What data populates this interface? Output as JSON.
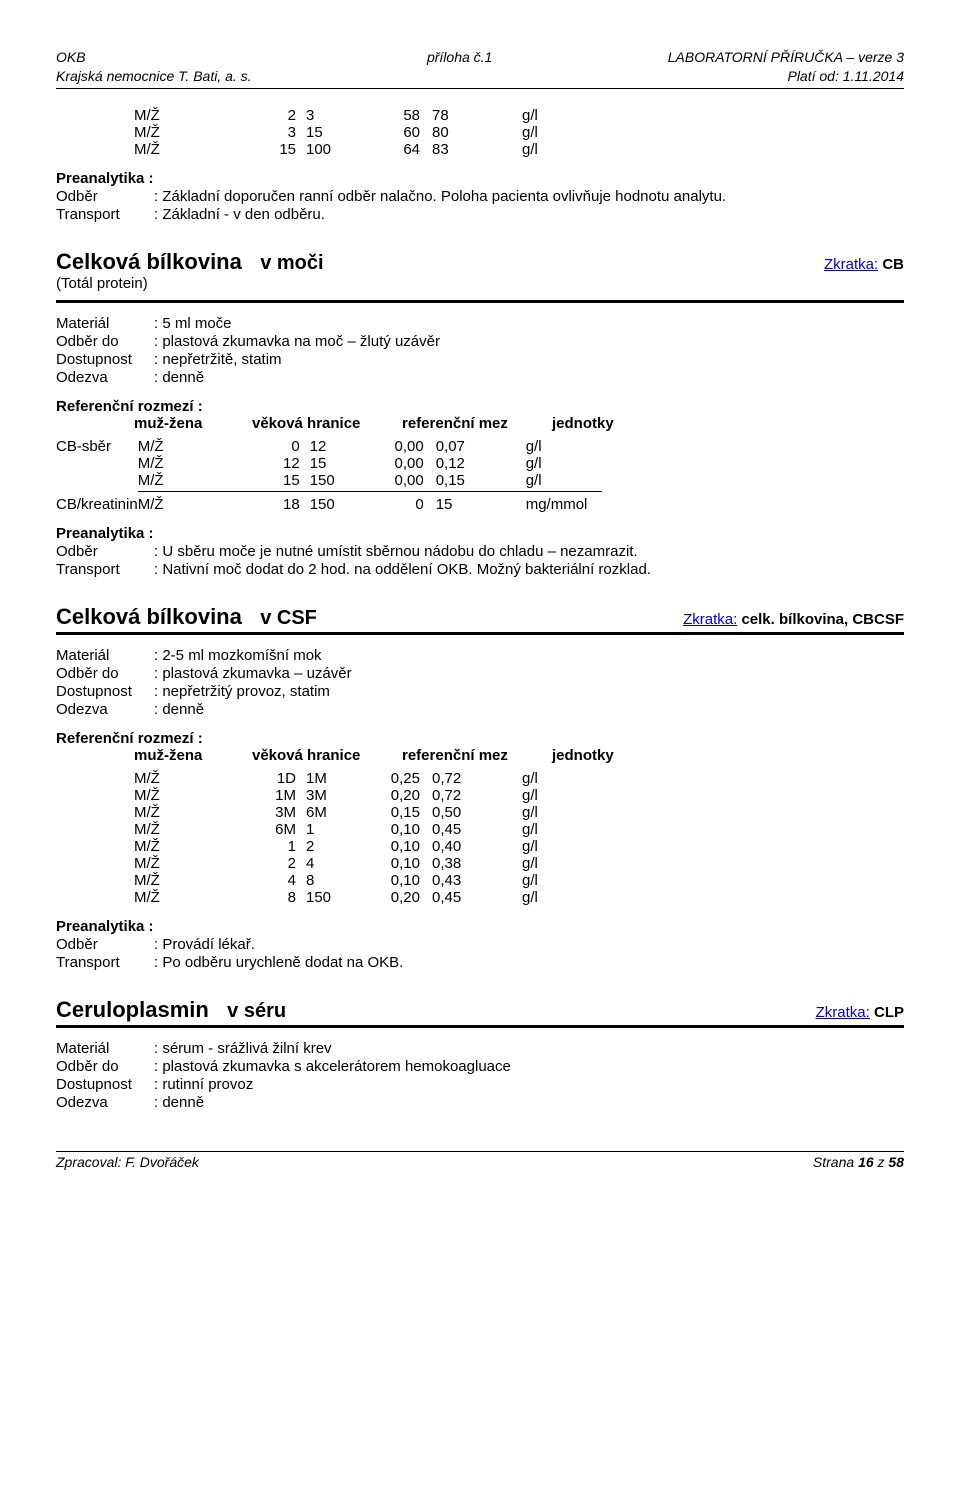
{
  "header": {
    "left1": "OKB",
    "left2": "Krajská nemocnice T. Bati, a. s.",
    "mid": "příloha č.1",
    "right1": "LABORATORNÍ PŘÍRUČKA – verze 3",
    "right2": "Platí od: 1.11.2014"
  },
  "top_table_rows": [
    {
      "sex": "M/Ž",
      "a": "2",
      "b": "3",
      "low": "58",
      "high": "78",
      "unit": "g/l"
    },
    {
      "sex": "M/Ž",
      "a": "3",
      "b": "15",
      "low": "60",
      "high": "80",
      "unit": "g/l"
    },
    {
      "sex": "M/Ž",
      "a": "15",
      "b": "100",
      "low": "64",
      "high": "83",
      "unit": "g/l"
    }
  ],
  "top_pre": {
    "title": "Preanalytika :",
    "odber_k": "Odběr",
    "odber_v": "Základní doporučen ranní odběr nalačno. Poloha pacienta ovlivňuje hodnotu analytu.",
    "trans_k": "Transport",
    "trans_v": "Základní - v den odběru."
  },
  "labels": {
    "material": "Materiál",
    "odber_do": "Odběr do",
    "dostup": "Dostupnost",
    "odezva": "Odezva",
    "ref_title": "Referenční rozmezí :",
    "rh_a": "muž-žena",
    "rh_b": "věková hranice",
    "rh_c": "referenční mez",
    "rh_d": "jednotky",
    "pre_title": "Preanalytika :",
    "odber": "Odběr",
    "transport": "Transport",
    "zkratka": "Zkratka:"
  },
  "sect1": {
    "title": "Celková bílkovina",
    "spec": "v moči",
    "code": "CB",
    "subtitle": "(Totál protein)",
    "meta": {
      "material": "5 ml moče",
      "odber_do": "plastová zkumavka na moč – žlutý uzávěr",
      "dostup": "nepřetržitě, statim",
      "odezva": "denně"
    },
    "rows": [
      {
        "lead": "CB-sběr",
        "sex": "M/Ž",
        "a": "0",
        "b": "12",
        "low": "0,00",
        "high": "0,07",
        "unit": "g/l"
      },
      {
        "lead": "",
        "sex": "M/Ž",
        "a": "12",
        "b": "15",
        "low": "0,00",
        "high": "0,12",
        "unit": "g/l"
      },
      {
        "lead": "",
        "sex": "M/Ž",
        "a": "15",
        "b": "150",
        "low": "0,00",
        "high": "0,15",
        "unit": "g/l",
        "last": true
      },
      {
        "lead": "CB/kreatinin",
        "sex": "M/Ž",
        "a": "18",
        "b": "150",
        "low": "0",
        "high": "15",
        "unit": "mg/mmol",
        "post": true
      }
    ],
    "pre": {
      "odber": " U sběru moče je nutné umístit sběrnou nádobu do chladu – nezamrazit.",
      "transport": "Nativní moč dodat do 2 hod. na oddělení OKB. Možný bakteriální rozklad."
    }
  },
  "sect2": {
    "title": "Celková bílkovina",
    "spec": "v CSF",
    "code": "celk. bílkovina, CBCSF",
    "meta": {
      "material": "2-5 ml mozkomíšní mok",
      "odber_do": "plastová zkumavka –  uzávěr",
      "dostup": "nepřetržitý provoz, statim",
      "odezva": "denně"
    },
    "rows": [
      {
        "sex": "M/Ž",
        "a": "1D",
        "b": "1M",
        "low": "0,25",
        "high": "0,72",
        "unit": "g/l"
      },
      {
        "sex": "M/Ž",
        "a": "1M",
        "b": "3M",
        "low": "0,20",
        "high": "0,72",
        "unit": "g/l"
      },
      {
        "sex": "M/Ž",
        "a": "3M",
        "b": "6M",
        "low": "0,15",
        "high": "0,50",
        "unit": "g/l"
      },
      {
        "sex": "M/Ž",
        "a": "6M",
        "b": "1",
        "low": "0,10",
        "high": "0,45",
        "unit": "g/l"
      },
      {
        "sex": "M/Ž",
        "a": "1",
        "b": "2",
        "low": "0,10",
        "high": "0,40",
        "unit": "g/l"
      },
      {
        "sex": "M/Ž",
        "a": "2",
        "b": "4",
        "low": "0,10",
        "high": "0,38",
        "unit": "g/l"
      },
      {
        "sex": "M/Ž",
        "a": "4",
        "b": "8",
        "low": "0,10",
        "high": "0,43",
        "unit": "g/l"
      },
      {
        "sex": "M/Ž",
        "a": "8",
        "b": "150",
        "low": "0,20",
        "high": "0,45",
        "unit": "g/l"
      }
    ],
    "pre": {
      "odber": "Provádí lékař.",
      "transport": "Po odběru urychleně dodat na OKB."
    }
  },
  "sect3": {
    "title": "Ceruloplasmin",
    "spec": "v séru",
    "code": "CLP",
    "meta": {
      "material": "sérum  -  srážlivá žilní krev",
      "odber_do": "plastová zkumavka s akcelerátorem hemokoagluace",
      "dostup": "rutinní provoz",
      "odezva": "denně"
    }
  },
  "footer": {
    "left": "Zpracoval: F. Dvořáček",
    "right_a": "Strana ",
    "right_b": "16",
    "right_c": " z ",
    "right_d": "58"
  }
}
